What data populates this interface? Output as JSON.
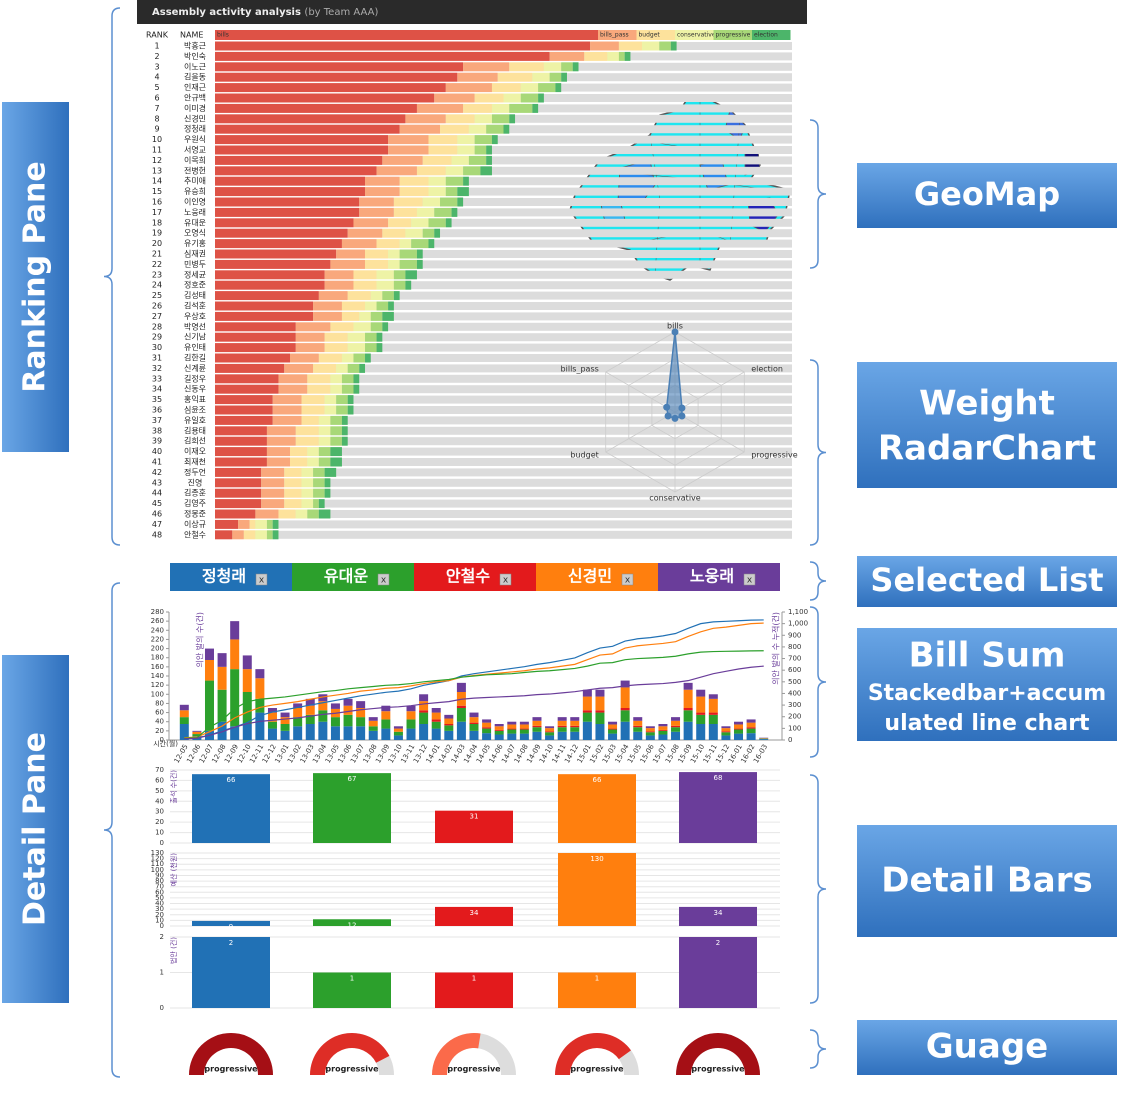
{
  "header": {
    "title": "Assembly activity analysis",
    "subtitle": "(by Team AAA)"
  },
  "ranking": {
    "columns": [
      "RANK",
      "NAME"
    ],
    "xlim": [
      0,
      100
    ],
    "legend": [
      {
        "name": "bills",
        "color": "#de5246"
      },
      {
        "name": "bills_pass",
        "color": "#f9a87c"
      },
      {
        "name": "budget",
        "color": "#fde29c"
      },
      {
        "name": "conservative",
        "color": "#eef3a6"
      },
      {
        "name": "progressive",
        "color": "#a8d878"
      },
      {
        "name": "election",
        "color": "#4cb56a"
      }
    ],
    "rows": [
      {
        "rank": 1,
        "name": "박홍근",
        "values": [
          65,
          5,
          4,
          3,
          2,
          1
        ]
      },
      {
        "rank": 2,
        "name": "박인숙",
        "values": [
          58,
          6,
          4,
          2,
          1,
          1
        ]
      },
      {
        "rank": 3,
        "name": "이노근",
        "values": [
          43,
          8,
          6,
          3,
          2,
          1
        ]
      },
      {
        "rank": 4,
        "name": "김을동",
        "values": [
          42,
          7,
          6,
          3,
          2,
          1
        ]
      },
      {
        "rank": 5,
        "name": "인재근",
        "values": [
          40,
          8,
          5,
          3,
          3,
          1
        ]
      },
      {
        "rank": 6,
        "name": "안규백",
        "values": [
          38,
          7,
          5,
          3,
          3,
          1
        ]
      },
      {
        "rank": 7,
        "name": "이미경",
        "values": [
          35,
          8,
          5,
          3,
          4,
          1
        ]
      },
      {
        "rank": 8,
        "name": "신경민",
        "values": [
          33,
          7,
          5,
          3,
          3,
          1
        ]
      },
      {
        "rank": 9,
        "name": "정청래",
        "values": [
          32,
          7,
          5,
          3,
          3,
          1
        ]
      },
      {
        "rank": 10,
        "name": "우원식",
        "values": [
          30,
          7,
          5,
          3,
          3,
          1
        ]
      },
      {
        "rank": 11,
        "name": "서영교",
        "values": [
          30,
          7,
          5,
          3,
          2,
          1
        ]
      },
      {
        "rank": 12,
        "name": "이목희",
        "values": [
          29,
          7,
          5,
          3,
          3,
          1
        ]
      },
      {
        "rank": 13,
        "name": "전병헌",
        "values": [
          28,
          7,
          5,
          3,
          3,
          2
        ]
      },
      {
        "rank": 14,
        "name": "추미애",
        "values": [
          26,
          6,
          5,
          3,
          3,
          1
        ]
      },
      {
        "rank": 15,
        "name": "유승희",
        "values": [
          26,
          6,
          5,
          3,
          2,
          2
        ]
      },
      {
        "rank": 16,
        "name": "이인영",
        "values": [
          25,
          6,
          5,
          3,
          3,
          1
        ]
      },
      {
        "rank": 17,
        "name": "노웅래",
        "values": [
          25,
          6,
          4,
          3,
          3,
          1
        ]
      },
      {
        "rank": 18,
        "name": "유대운",
        "values": [
          24,
          6,
          4,
          3,
          3,
          1
        ]
      },
      {
        "rank": 19,
        "name": "오영식",
        "values": [
          23,
          6,
          4,
          3,
          2,
          1
        ]
      },
      {
        "rank": 20,
        "name": "유기홍",
        "values": [
          22,
          6,
          4,
          2,
          3,
          1
        ]
      },
      {
        "rank": 21,
        "name": "심재권",
        "values": [
          21,
          5,
          4,
          2,
          3,
          1
        ]
      },
      {
        "rank": 22,
        "name": "민병두",
        "values": [
          20,
          6,
          4,
          2,
          3,
          1
        ]
      },
      {
        "rank": 23,
        "name": "정세균",
        "values": [
          19,
          5,
          4,
          3,
          2,
          2
        ]
      },
      {
        "rank": 24,
        "name": "정호준",
        "values": [
          19,
          5,
          4,
          3,
          2,
          1
        ]
      },
      {
        "rank": 25,
        "name": "김성태",
        "values": [
          18,
          5,
          4,
          2,
          2,
          1
        ]
      },
      {
        "rank": 26,
        "name": "김석훈",
        "values": [
          17,
          5,
          4,
          2,
          2,
          1
        ]
      },
      {
        "rank": 27,
        "name": "우상호",
        "values": [
          17,
          5,
          3,
          2,
          2,
          2
        ]
      },
      {
        "rank": 28,
        "name": "박영선",
        "values": [
          14,
          6,
          4,
          3,
          2,
          1
        ]
      },
      {
        "rank": 29,
        "name": "신기남",
        "values": [
          14,
          5,
          4,
          3,
          2,
          1
        ]
      },
      {
        "rank": 30,
        "name": "유인태",
        "values": [
          14,
          5,
          4,
          3,
          2,
          1
        ]
      },
      {
        "rank": 31,
        "name": "김한길",
        "values": [
          13,
          5,
          4,
          2,
          2,
          1
        ]
      },
      {
        "rank": 32,
        "name": "신계륜",
        "values": [
          12,
          5,
          4,
          2,
          2,
          1
        ]
      },
      {
        "rank": 33,
        "name": "길정우",
        "values": [
          11,
          5,
          4,
          2,
          2,
          1
        ]
      },
      {
        "rank": 34,
        "name": "신동우",
        "values": [
          11,
          5,
          4,
          2,
          2,
          1
        ]
      },
      {
        "rank": 35,
        "name": "홍익표",
        "values": [
          10,
          5,
          4,
          2,
          2,
          1
        ]
      },
      {
        "rank": 36,
        "name": "심윤조",
        "values": [
          10,
          5,
          4,
          2,
          2,
          1
        ]
      },
      {
        "rank": 37,
        "name": "유일호",
        "values": [
          10,
          5,
          3,
          2,
          2,
          1
        ]
      },
      {
        "rank": 38,
        "name": "김용태",
        "values": [
          9,
          5,
          4,
          2,
          2,
          1
        ]
      },
      {
        "rank": 39,
        "name": "김희선",
        "values": [
          9,
          5,
          4,
          2,
          2,
          1
        ]
      },
      {
        "rank": 40,
        "name": "이재오",
        "values": [
          9,
          4,
          3,
          2,
          2,
          2
        ]
      },
      {
        "rank": 41,
        "name": "최재천",
        "values": [
          9,
          4,
          3,
          2,
          2,
          2
        ]
      },
      {
        "rank": 42,
        "name": "정두언",
        "values": [
          8,
          4,
          3,
          2,
          2,
          2
        ]
      },
      {
        "rank": 43,
        "name": "진영",
        "values": [
          8,
          4,
          3,
          2,
          2,
          1
        ]
      },
      {
        "rank": 44,
        "name": "김종훈",
        "values": [
          8,
          4,
          3,
          2,
          2,
          1
        ]
      },
      {
        "rank": 45,
        "name": "김영주",
        "values": [
          8,
          4,
          3,
          2,
          1,
          1
        ]
      },
      {
        "rank": 46,
        "name": "정몽준",
        "values": [
          7,
          4,
          3,
          2,
          2,
          2
        ]
      },
      {
        "rank": 47,
        "name": "이상규",
        "values": [
          4,
          2,
          1,
          2,
          1,
          1
        ]
      },
      {
        "rank": 48,
        "name": "안철수",
        "values": [
          3,
          2,
          2,
          2,
          1,
          1
        ]
      }
    ]
  },
  "radar": {
    "axes": [
      "bills",
      "election",
      "progressive",
      "conservative",
      "budget",
      "bills_pass"
    ],
    "values": [
      1,
      0.1,
      0.1,
      0.08,
      0.1,
      0.12
    ],
    "rlim": [
      0,
      1
    ],
    "color": "#4a7fb5"
  },
  "selected": {
    "close_label": "x",
    "items": [
      {
        "name": "정청래",
        "color": "#2171b5"
      },
      {
        "name": "유대운",
        "color": "#2ca02c"
      },
      {
        "name": "안철수",
        "color": "#e31a1c"
      },
      {
        "name": "신경민",
        "color": "#ff7f0e"
      },
      {
        "name": "노웅래",
        "color": "#6a3d9a"
      }
    ]
  },
  "bill_sum": {
    "xlabel": "시간(월)",
    "ylabel": "의안 발의 수(건)",
    "y2label": "의안 발의 수 누적(건)",
    "categories": [
      "12-05",
      "12-06",
      "12-07",
      "12-08",
      "12-09",
      "12-10",
      "12-11",
      "12-12",
      "13-01",
      "13-02",
      "13-03",
      "13-04",
      "13-05",
      "13-06",
      "13-07",
      "13-08",
      "13-09",
      "13-10",
      "13-11",
      "13-12",
      "14-01",
      "14-02",
      "14-03",
      "14-04",
      "14-05",
      "14-06",
      "14-07",
      "14-08",
      "14-09",
      "14-10",
      "14-11",
      "14-12",
      "15-01",
      "15-02",
      "15-03",
      "15-04",
      "15-05",
      "15-06",
      "15-07",
      "15-08",
      "15-09",
      "15-10",
      "15-11",
      "15-12",
      "16-01",
      "16-02",
      "16-03"
    ],
    "ylim": [
      0,
      280
    ],
    "yticks": [
      0,
      20,
      40,
      60,
      80,
      100,
      120,
      140,
      160,
      180,
      200,
      220,
      240,
      260,
      280
    ],
    "y2lim": [
      0,
      1100
    ],
    "y2ticks": [
      0,
      100,
      200,
      300,
      400,
      500,
      600,
      700,
      800,
      900,
      {
        "value": 1000,
        "label": "1,000"
      },
      {
        "value": 1100,
        "label": "1,100"
      }
    ],
    "bars": [
      {
        "color": "#2171b5",
        "values": [
          35,
          8,
          20,
          40,
          30,
          35,
          60,
          25,
          20,
          30,
          35,
          40,
          30,
          30,
          30,
          20,
          25,
          10,
          25,
          35,
          25,
          20,
          40,
          20,
          15,
          12,
          14,
          14,
          18,
          10,
          18,
          18,
          40,
          35,
          14,
          40,
          18,
          10,
          12,
          18,
          40,
          35,
          35,
          10,
          14,
          15,
          2
        ]
      },
      {
        "color": "#2ca02c",
        "values": [
          15,
          5,
          110,
          70,
          125,
          70,
          30,
          15,
          15,
          20,
          20,
          25,
          20,
          25,
          20,
          10,
          20,
          8,
          20,
          25,
          15,
          12,
          30,
          15,
          10,
          8,
          9,
          9,
          10,
          7,
          10,
          10,
          20,
          25,
          9,
          25,
          10,
          7,
          8,
          10,
          25,
          20,
          20,
          7,
          9,
          10,
          1
        ]
      },
      {
        "color": "#e31a1c",
        "values": [
          0,
          0,
          0,
          0,
          0,
          0,
          0,
          0,
          0,
          0,
          0,
          0,
          0,
          0,
          0,
          0,
          0,
          0,
          0,
          5,
          5,
          3,
          5,
          3,
          3,
          2,
          2,
          2,
          3,
          2,
          3,
          3,
          5,
          5,
          2,
          5,
          3,
          2,
          2,
          3,
          5,
          5,
          5,
          2,
          2,
          3,
          0
        ]
      },
      {
        "color": "#ff7f0e",
        "values": [
          15,
          5,
          45,
          50,
          65,
          50,
          45,
          20,
          15,
          20,
          20,
          20,
          18,
          20,
          20,
          12,
          18,
          7,
          18,
          20,
          15,
          12,
          30,
          12,
          10,
          8,
          9,
          9,
          11,
          7,
          11,
          11,
          30,
          30,
          9,
          45,
          11,
          7,
          8,
          11,
          40,
          35,
          30,
          7,
          9,
          10,
          1
        ]
      },
      {
        "color": "#6a3d9a",
        "values": [
          12,
          2,
          25,
          30,
          40,
          30,
          20,
          10,
          10,
          10,
          15,
          15,
          12,
          15,
          15,
          8,
          12,
          5,
          12,
          15,
          10,
          8,
          20,
          10,
          7,
          5,
          6,
          6,
          8,
          4,
          8,
          8,
          15,
          15,
          6,
          15,
          8,
          4,
          5,
          8,
          15,
          15,
          10,
          4,
          6,
          7,
          1
        ]
      }
    ],
    "lines": [
      {
        "color": "#2171b5",
        "values": [
          10,
          20,
          40,
          80,
          110,
          150,
          210,
          240,
          260,
          280,
          300,
          320,
          340,
          360,
          380,
          395,
          410,
          420,
          440,
          470,
          490,
          510,
          550,
          570,
          585,
          600,
          615,
          630,
          650,
          665,
          685,
          705,
          750,
          790,
          805,
          850,
          870,
          880,
          895,
          915,
          960,
          1000,
          1015,
          1020,
          1025,
          1030,
          1032
        ]
      },
      {
        "color": "#ff7f0e",
        "values": [
          20,
          25,
          70,
          120,
          190,
          240,
          280,
          300,
          315,
          330,
          350,
          370,
          385,
          400,
          420,
          430,
          445,
          450,
          465,
          485,
          500,
          510,
          540,
          555,
          565,
          575,
          585,
          595,
          610,
          620,
          635,
          650,
          690,
          730,
          740,
          790,
          810,
          820,
          830,
          845,
          890,
          930,
          960,
          970,
          985,
          1000,
          1005
        ]
      },
      {
        "color": "#2ca02c",
        "values": [
          15,
          20,
          110,
          170,
          270,
          330,
          350,
          360,
          370,
          385,
          400,
          415,
          425,
          440,
          450,
          460,
          470,
          475,
          485,
          500,
          510,
          520,
          540,
          550,
          560,
          565,
          570,
          580,
          590,
          595,
          605,
          615,
          635,
          660,
          665,
          690,
          700,
          705,
          710,
          720,
          740,
          755,
          760,
          762,
          764,
          766,
          767
        ]
      },
      {
        "color": "#6a3d9a",
        "values": [
          10,
          15,
          40,
          70,
          110,
          140,
          160,
          170,
          180,
          190,
          205,
          220,
          230,
          245,
          260,
          270,
          280,
          285,
          295,
          310,
          320,
          330,
          350,
          360,
          365,
          370,
          375,
          380,
          390,
          395,
          405,
          415,
          430,
          445,
          450,
          465,
          475,
          480,
          485,
          495,
          510,
          540,
          570,
          590,
          610,
          625,
          635
        ]
      }
    ]
  },
  "detail_bars": [
    {
      "ylabel": "출석 수(건)",
      "ylim": [
        0,
        70
      ],
      "yticks": [
        0,
        10,
        20,
        30,
        40,
        50,
        60,
        70
      ],
      "values": [
        66,
        67,
        31,
        66,
        68
      ]
    },
    {
      "ylabel": "예산 (천원)",
      "ylim": [
        0,
        130
      ],
      "yticks": [
        0,
        10,
        20,
        30,
        40,
        50,
        60,
        70,
        80,
        90,
        100,
        110,
        120,
        130
      ],
      "values": [
        9,
        12,
        34,
        130,
        34
      ]
    },
    {
      "ylabel": "법안 (건)",
      "ylim": [
        0,
        2
      ],
      "yticks": [
        0,
        1,
        2
      ],
      "values": [
        2,
        1,
        1,
        1,
        2
      ]
    }
  ],
  "gauges": {
    "label": "progressive",
    "lim": [
      0,
      100
    ],
    "values": [
      100,
      85,
      55,
      80,
      100
    ],
    "colors": [
      "#a50f15",
      "#de2d26",
      "#fb6a4a",
      "#de2d26",
      "#a50f15"
    ]
  },
  "annotations": {
    "ranking_pane": "Ranking Pane",
    "detail_pane": "Detail Pane",
    "geomap": "GeoMap",
    "radar": [
      "Weight",
      "RadarChart"
    ],
    "selected_list": "Selected List",
    "bill_sum": "Bill Sum",
    "bill_sum_sub": [
      "Stackedbar+accum",
      "ulated line chart"
    ],
    "detail_bars": "Detail Bars",
    "gauge": "Guage"
  }
}
